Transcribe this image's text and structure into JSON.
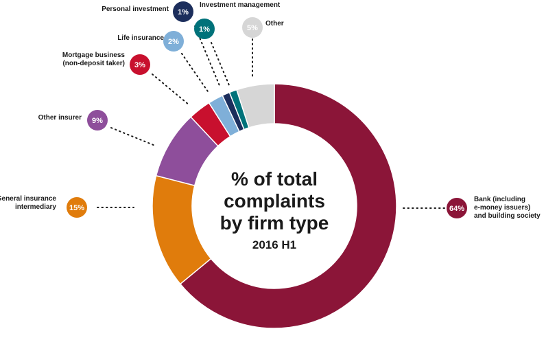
{
  "chart_data": {
    "type": "pie",
    "variant": "donut",
    "title_lines": [
      "% of total",
      "complaints",
      "by firm type"
    ],
    "subtitle": "2016 H1",
    "slices": [
      {
        "key": "bank",
        "label_lines": [
          "Bank (including",
          "e-money issuers)",
          "and building society"
        ],
        "value": 64,
        "display": "64%",
        "color": "#8b1538"
      },
      {
        "key": "gii",
        "label_lines": [
          "General insurance",
          "intermediary"
        ],
        "value": 15,
        "display": "15%",
        "color": "#e07c0c"
      },
      {
        "key": "other-insurer",
        "label_lines": [
          "Other insurer"
        ],
        "value": 9,
        "display": "9%",
        "color": "#8e4e9b"
      },
      {
        "key": "mortgage",
        "label_lines": [
          "Mortgage business",
          "(non-deposit taker)"
        ],
        "value": 3,
        "display": "3%",
        "color": "#c8102e"
      },
      {
        "key": "life",
        "label_lines": [
          "Life insurance"
        ],
        "value": 2,
        "display": "2%",
        "color": "#7fafd8"
      },
      {
        "key": "personal",
        "label_lines": [
          "Personal investment"
        ],
        "value": 1,
        "display": "1%",
        "color": "#1c2e5c"
      },
      {
        "key": "investment",
        "label_lines": [
          "Investment management"
        ],
        "value": 1,
        "display": "1%",
        "color": "#00727a"
      },
      {
        "key": "other",
        "label_lines": [
          "Other"
        ],
        "value": 5,
        "display": "5%",
        "color": "#d6d6d6"
      }
    ]
  }
}
